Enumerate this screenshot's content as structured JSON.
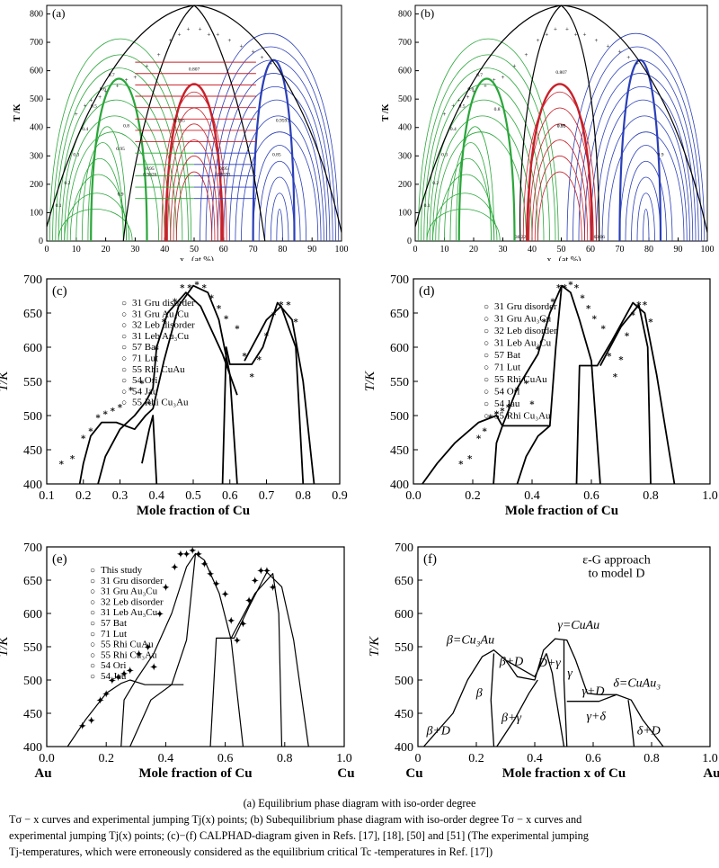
{
  "figure": {
    "panels": [
      {
        "id": "a",
        "label": "(a)",
        "ylabel": "T /K",
        "xlabel": "x",
        "xlabel_sub": "Cu",
        "xlabel_unit": "(at.%)",
        "yticks": [
          "0",
          "100",
          "200",
          "300",
          "400",
          "500",
          "600",
          "700",
          "800"
        ],
        "xticks": [
          "0",
          "10",
          "20",
          "30",
          "40",
          "50",
          "60",
          "70",
          "80",
          "90",
          "100"
        ],
        "annotations": [
          "0.807",
          "0.95",
          "0.9626",
          "0.95",
          "0.9593",
          "0.1",
          "0.2",
          "0.3",
          "0.4",
          "0.5",
          "0.6",
          "0.7",
          "0.8",
          "0.9",
          "0.95",
          "0.765",
          "0.85",
          "0.9593"
        ]
      },
      {
        "id": "b",
        "label": "(b)",
        "ylabel": "T /K",
        "xlabel": "x",
        "xlabel_sub": "Cu",
        "xlabel_unit": "(at.%)",
        "yticks": [
          "0",
          "100",
          "200",
          "300",
          "400",
          "500",
          "600",
          "700",
          "800"
        ],
        "xticks": [
          "0",
          "10",
          "20",
          "30",
          "40",
          "50",
          "60",
          "70",
          "80",
          "90",
          "100"
        ],
        "annotations": [
          "0.807",
          "36.22",
          "63.06",
          "0.1",
          "0.2",
          "0.3",
          "0.4",
          "0.5",
          "0.6",
          "0.7",
          "0.8",
          "0.9",
          "0.95",
          "0.85"
        ]
      },
      {
        "id": "c",
        "label": "(c)",
        "ylabel": "T/K",
        "xlabel": "Mole fraction of Cu",
        "yticks": [
          "400",
          "450",
          "500",
          "550",
          "600",
          "650",
          "700"
        ],
        "xticks": [
          "0.1",
          "0.2",
          "0.3",
          "0.4",
          "0.5",
          "0.6",
          "0.7",
          "0.8",
          "0.9"
        ],
        "legend": [
          "31 Gru disorder",
          "31 Gru Au₃Cu",
          "32 Leb disorder",
          "31 Leb Au₃Cu",
          "57 Bat",
          "71 Lut",
          "55 Rhi CuAu",
          "54 Ori",
          "54 Jau",
          "55 Rhi Cu₃Au"
        ]
      },
      {
        "id": "d",
        "label": "(d)",
        "ylabel": "T/K",
        "xlabel": "Mole fraction of Cu",
        "yticks": [
          "400",
          "450",
          "500",
          "550",
          "600",
          "650",
          "700"
        ],
        "xticks": [
          "0.0",
          "0.2",
          "0.4",
          "0.6",
          "0.8",
          "1.0"
        ],
        "legend": [
          "31 Gru disorder",
          "31 Gru Au₃Cu",
          "32 Leb disorder",
          "31 Leb Au₃Cu",
          "57 Bat",
          "71 Lut",
          "55 Rhi CuAu",
          "54 Ori",
          "54 Jau",
          "55 Rhi Cu₃Au"
        ]
      },
      {
        "id": "e",
        "label": "(e)",
        "ylabel": "T/K",
        "xlabel": "Mole fraction of Cu",
        "left_end": "Au",
        "right_end": "Cu",
        "yticks": [
          "400",
          "450",
          "500",
          "550",
          "600",
          "650",
          "700"
        ],
        "xticks": [
          "0.0",
          "0.2",
          "0.4",
          "0.6",
          "0.8",
          "1.0"
        ],
        "legend": [
          "This study",
          "31 Gru disorder",
          "31 Gru Au₃Cu",
          "32 Leb disorder",
          "31 Leb Au₃Cu",
          "57 Bat",
          "71 Lut",
          "55 Rhi CuAu",
          "55 Rhi Cu₃Au",
          "54 Ori",
          "54 Jau"
        ]
      },
      {
        "id": "f",
        "label": "(f)",
        "ylabel": "T/K",
        "xlabel": "Mole fraction x of Cu",
        "left_end": "Cu",
        "right_end": "Au",
        "yticks": [
          "400",
          "450",
          "500",
          "550",
          "600",
          "650",
          "700"
        ],
        "xticks": [
          "0",
          "0.2",
          "0.4",
          "0.6",
          "0.8",
          "1.0"
        ],
        "title_lines": [
          "ε-G approach",
          "to model D"
        ],
        "regions": [
          "β=Cu₃Au",
          "β+D",
          "β",
          "β+D",
          "β+γ",
          "D+γ",
          "γ=CuAu",
          "γ",
          "γ+D",
          "γ+δ",
          "δ=CuAu₃",
          "δ+D"
        ]
      }
    ]
  },
  "caption": {
    "line1": "(a) Equilibrium phase diagram with iso-order degree",
    "line2": "Tσ − x  curves and experimental jumping Tj(x) points; (b) Subequilibrium phase diagram with iso-order degree  Tσ − x  curves and",
    "line3": "experimental jumping Tj(x) points; (c)−(f) CALPHAD-diagram given in Refs. [17], [18], [50] and [51] (The experimental jumping",
    "line4": "Tj-temperatures, which were erroneously considered as the equilibrium critical  Tc -temperatures in Ref. [17])"
  }
}
